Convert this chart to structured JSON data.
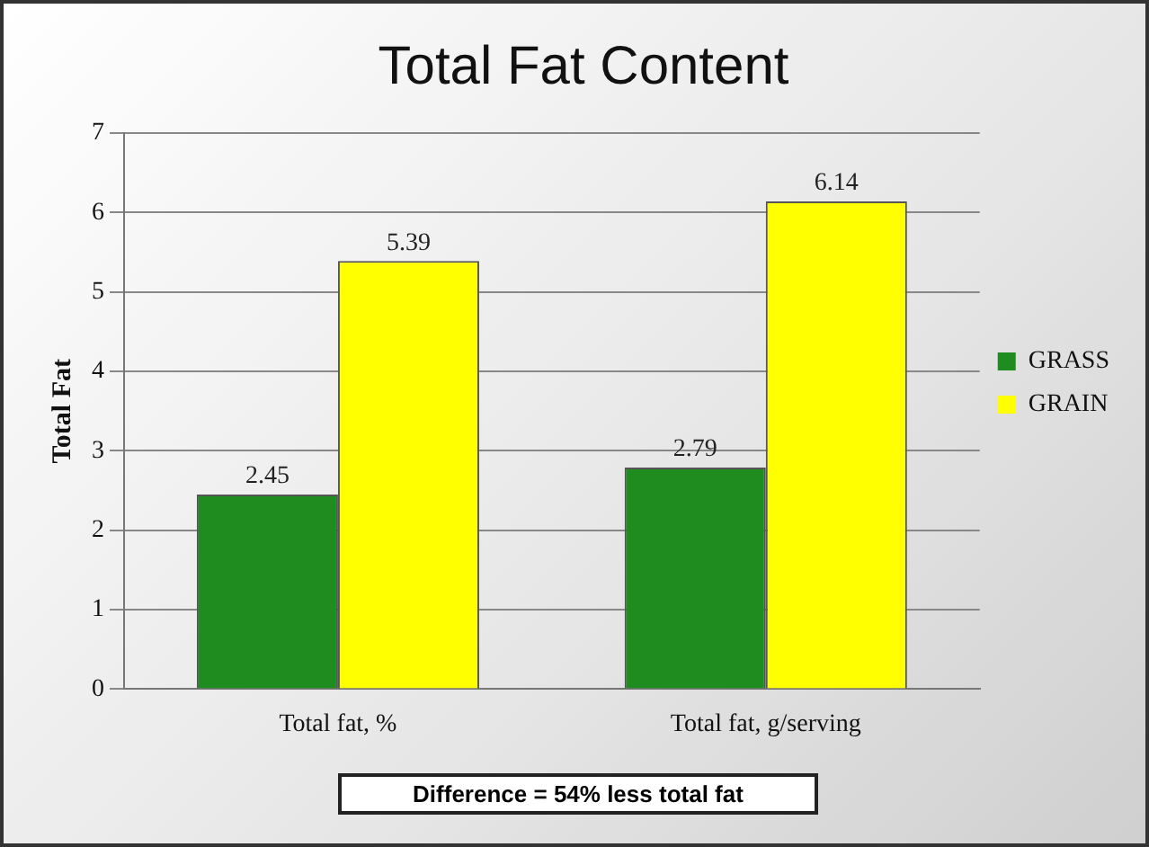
{
  "chart_data": {
    "type": "bar",
    "title": "Total Fat Content",
    "ylabel": "Total Fat",
    "categories": [
      "Total fat, %",
      "Total fat, g/serving"
    ],
    "series": [
      {
        "name": "GRASS",
        "color": "#1e8c1e",
        "values": [
          2.45,
          2.79
        ]
      },
      {
        "name": "GRAIN",
        "color": "#ffff00",
        "values": [
          5.39,
          6.14
        ]
      }
    ],
    "ylim": [
      0,
      7
    ],
    "yticks": [
      0,
      1,
      2,
      3,
      4,
      5,
      6,
      7
    ],
    "grid": "y",
    "legend": "right",
    "data_labels": true,
    "annotations": [
      "Difference = 54% less total fat"
    ]
  }
}
